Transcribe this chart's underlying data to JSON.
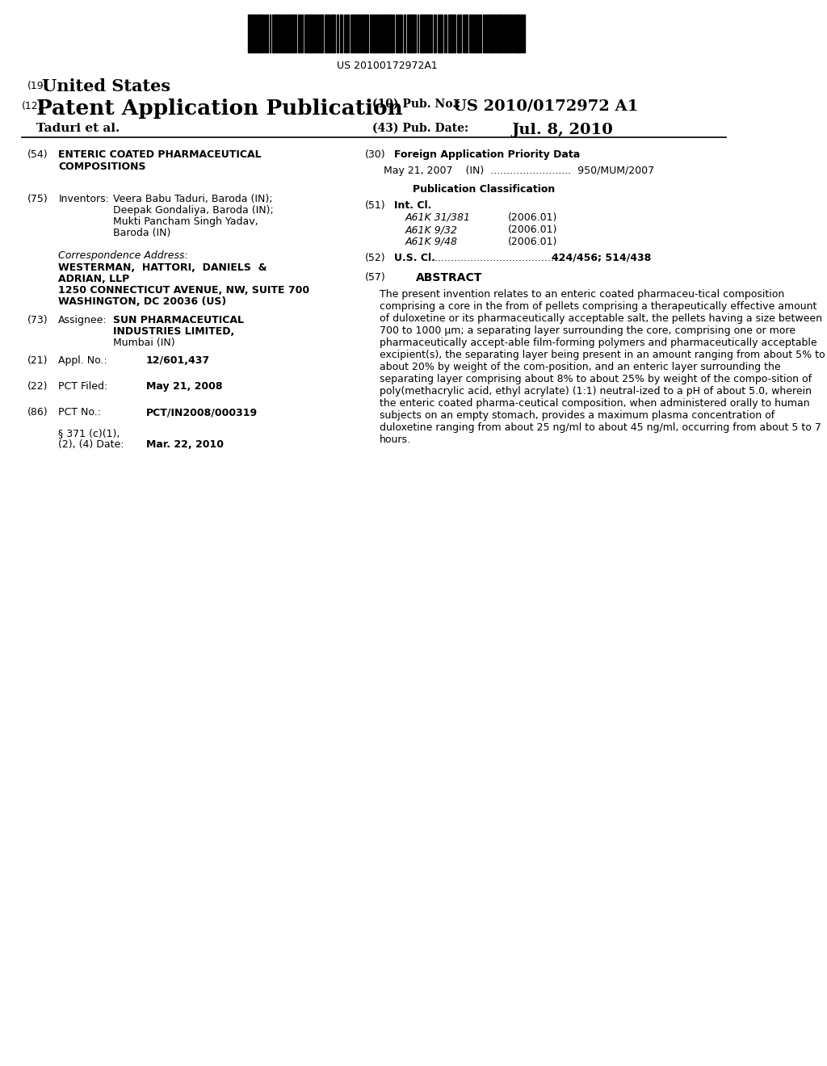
{
  "background_color": "#ffffff",
  "barcode_text": "US 20100172972A1",
  "header": {
    "country_label": "(19)",
    "country": "United States",
    "type_label": "(12)",
    "type": "Patent Application Publication",
    "pub_no_label": "(10) Pub. No.:",
    "pub_no": "US 2010/0172972 A1",
    "author": "Taduri et al.",
    "date_label": "(43) Pub. Date:",
    "date": "Jul. 8, 2010"
  },
  "left_col": {
    "title_num": "(54)",
    "title": "ENTERIC COATED PHARMACEUTICAL\nCOMPOSITIONS",
    "inventors_num": "(75)",
    "inventors_label": "Inventors:",
    "inventors_text": "Veera Babu Taduri, Baroda (IN);\nDeepak Gondaliya, Baroda (IN);\nMukti Pancham Singh Yadav,\nBaroda (IN)",
    "corr_label": "Correspondence Address:",
    "corr_text": "WESTERMAN,  HATTORI,  DANIELS  &\nADRIAN, LLP\n1250 CONNECTICUT AVENUE, NW, SUITE 700\nWASHINGTON, DC 20036 (US)",
    "assignee_num": "(73)",
    "assignee_label": "Assignee:",
    "assignee_text": "SUN PHARMACEUTICAL\nINDUSTRIES LIMITED,\nMumbai (IN)",
    "appl_num": "(21)",
    "appl_label": "Appl. No.:",
    "appl_val": "12/601,437",
    "pct_filed_num": "(22)",
    "pct_filed_label": "PCT Filed:",
    "pct_filed_val": "May 21, 2008",
    "pct_no_num": "(86)",
    "pct_no_label": "PCT No.:",
    "pct_no_val": "PCT/IN2008/000319",
    "section_label": "§ 371 (c)(1),\n(2), (4) Date:",
    "section_val": "Mar. 22, 2010"
  },
  "right_col": {
    "foreign_num": "(30)",
    "foreign_label": "Foreign Application Priority Data",
    "foreign_entry": "May 21, 2007    (IN)  .........................  950/MUM/2007",
    "pub_class_label": "Publication Classification",
    "intcl_num": "(51)",
    "intcl_label": "Int. Cl.",
    "intcl_entries": [
      [
        "A61K 31/381",
        "(2006.01)"
      ],
      [
        "A61K 9/32",
        "(2006.01)"
      ],
      [
        "A61K 9/48",
        "(2006.01)"
      ]
    ],
    "uscl_num": "(52)",
    "uscl_label": "U.S. Cl.",
    "uscl_val": "424/456; 514/438",
    "abstract_num": "(57)",
    "abstract_label": "ABSTRACT",
    "abstract_text": "The present invention relates to an enteric coated pharmaceu-tical composition comprising a core in the from of pellets comprising a therapeutically effective amount of duloxetine or its pharmaceutically acceptable salt, the pellets having a size between 700 to 1000 μm; a separating layer surrounding the core, comprising one or more pharmaceutically accept-able film-forming polymers and pharmaceutically acceptable excipient(s), the separating layer being present in an amount ranging from about 5% to about 20% by weight of the com-position, and an enteric layer surrounding the separating layer comprising about 8% to about 25% by weight of the compo-sition of poly(methacrylic acid, ethyl acrylate) (1:1) neutral-ized to a pH of about 5.0, wherein the enteric coated pharma-ceutical composition, when administered orally to human subjects on an empty stomach, provides a maximum plasma concentration of duloxetine ranging from about 25 ng/ml to about 45 ng/ml, occurring from about 5 to 7 hours."
  }
}
